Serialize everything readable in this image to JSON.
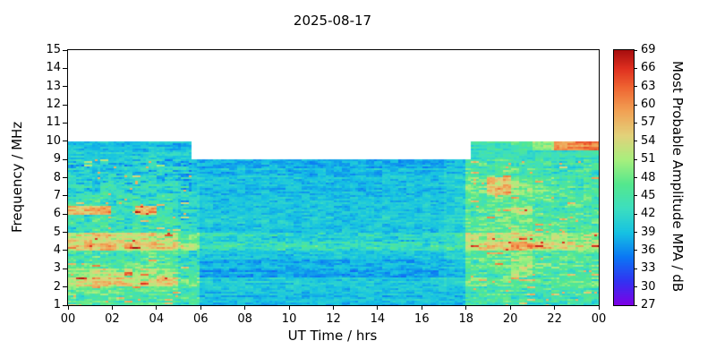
{
  "chart_data": {
    "type": "heatmap",
    "title": "2025-08-17",
    "xlabel": "UT Time / hrs",
    "ylabel": "Frequency / MHz",
    "colorbar_label": "Most Probable Amplitude MPA / dB",
    "x_range": [
      0,
      24
    ],
    "y_range": [
      1,
      15
    ],
    "colorbar_range": [
      27,
      69
    ],
    "x_tick_hours": [
      0,
      2,
      4,
      6,
      8,
      10,
      12,
      14,
      16,
      18,
      20,
      22,
      24
    ],
    "x_tick_labels": [
      "00",
      "02",
      "04",
      "06",
      "08",
      "10",
      "12",
      "14",
      "16",
      "18",
      "20",
      "22",
      "00"
    ],
    "y_ticks": [
      1,
      2,
      3,
      4,
      5,
      6,
      7,
      8,
      9,
      10,
      11,
      12,
      13,
      14,
      15
    ],
    "colorbar_ticks": [
      27,
      30,
      33,
      36,
      39,
      42,
      45,
      48,
      51,
      54,
      57,
      60,
      63,
      66,
      69
    ],
    "colormap_stops": [
      [
        27,
        "#8000e6"
      ],
      [
        31,
        "#3333f2"
      ],
      [
        35,
        "#0b78f5"
      ],
      [
        39,
        "#17c3e3"
      ],
      [
        43,
        "#3ddfc0"
      ],
      [
        47,
        "#55e88e"
      ],
      [
        51,
        "#a8f07e"
      ],
      [
        55,
        "#e3d27b"
      ],
      [
        59,
        "#f2a255"
      ],
      [
        63,
        "#ef6432"
      ],
      [
        66,
        "#e03020"
      ],
      [
        69,
        "#a80f0f"
      ]
    ],
    "coverage": {
      "full_top_mhz": 10,
      "midday_top_mhz": 9,
      "midday_start_hr": 5.6,
      "midday_end_hr": 18.2
    },
    "grid": {
      "freq_start": 1.0,
      "freq_step": 0.5,
      "hour_step": 1,
      "values": [
        [
          46,
          46,
          45,
          46,
          45,
          44,
          39,
          39,
          39,
          39,
          39,
          39,
          39,
          39,
          39,
          39,
          39,
          39,
          44,
          45,
          44,
          44,
          44,
          44
        ],
        [
          48,
          48,
          47,
          48,
          47,
          44,
          40,
          40,
          40,
          40,
          40,
          40,
          40,
          40,
          40,
          40,
          40,
          40,
          45,
          46,
          45,
          45,
          45,
          45
        ],
        [
          55,
          56,
          55,
          54,
          55,
          48,
          40,
          40,
          40,
          40,
          40,
          40,
          40,
          40,
          40,
          40,
          40,
          41,
          48,
          47,
          46,
          46,
          46,
          46
        ],
        [
          50,
          52,
          50,
          51,
          50,
          45,
          37,
          37,
          37,
          37,
          37,
          37,
          37,
          37,
          37,
          37,
          37,
          38,
          45,
          46,
          50,
          45,
          45,
          45
        ],
        [
          46,
          47,
          46,
          47,
          46,
          43,
          38,
          38,
          38,
          38,
          38,
          38,
          38,
          38,
          38,
          38,
          38,
          39,
          46,
          48,
          52,
          47,
          46,
          46
        ],
        [
          45,
          46,
          45,
          46,
          45,
          43,
          40,
          40,
          40,
          40,
          40,
          40,
          40,
          40,
          40,
          40,
          40,
          41,
          47,
          47,
          50,
          46,
          46,
          46
        ],
        [
          56,
          57,
          56,
          56,
          55,
          50,
          43,
          44,
          43,
          44,
          43,
          44,
          43,
          44,
          43,
          44,
          43,
          45,
          54,
          55,
          58,
          55,
          54,
          54
        ],
        [
          54,
          55,
          54,
          54,
          53,
          48,
          42,
          42,
          42,
          42,
          41,
          42,
          41,
          42,
          42,
          42,
          42,
          43,
          52,
          53,
          54,
          52,
          51,
          51
        ],
        [
          44,
          45,
          44,
          45,
          44,
          42,
          40,
          40,
          40,
          40,
          40,
          40,
          40,
          40,
          40,
          40,
          40,
          41,
          47,
          48,
          49,
          47,
          46,
          46
        ],
        [
          43,
          44,
          43,
          44,
          43,
          41,
          40,
          40,
          40,
          40,
          39,
          40,
          39,
          40,
          40,
          40,
          40,
          41,
          46,
          47,
          48,
          46,
          45,
          45
        ],
        [
          58,
          60,
          45,
          58,
          44,
          42,
          40,
          40,
          40,
          40,
          40,
          40,
          40,
          40,
          40,
          40,
          40,
          41,
          47,
          48,
          53,
          47,
          46,
          46
        ],
        [
          43,
          44,
          43,
          43,
          43,
          41,
          39,
          39,
          39,
          39,
          39,
          39,
          39,
          39,
          39,
          39,
          39,
          40,
          46,
          47,
          47,
          46,
          45,
          45
        ],
        [
          42,
          43,
          42,
          43,
          42,
          41,
          39,
          39,
          39,
          39,
          39,
          39,
          39,
          39,
          39,
          39,
          39,
          40,
          48,
          58,
          50,
          47,
          46,
          45
        ],
        [
          41,
          42,
          41,
          42,
          41,
          40,
          39,
          39,
          39,
          39,
          39,
          39,
          39,
          39,
          39,
          39,
          39,
          40,
          47,
          55,
          48,
          46,
          45,
          45
        ],
        [
          41,
          41,
          41,
          41,
          41,
          40,
          39,
          39,
          39,
          39,
          38,
          39,
          38,
          39,
          39,
          39,
          39,
          40,
          46,
          47,
          46,
          45,
          44,
          44
        ],
        [
          40,
          41,
          40,
          41,
          40,
          39,
          38,
          38,
          38,
          38,
          38,
          38,
          38,
          38,
          38,
          38,
          38,
          39,
          45,
          46,
          45,
          44,
          44,
          44
        ],
        [
          40,
          40,
          40,
          40,
          40,
          40,
          null,
          null,
          null,
          null,
          null,
          null,
          null,
          null,
          null,
          null,
          null,
          null,
          43,
          44,
          43,
          43,
          43,
          43
        ],
        [
          39,
          39,
          39,
          39,
          39,
          39,
          null,
          null,
          null,
          null,
          null,
          null,
          null,
          null,
          null,
          null,
          null,
          null,
          43,
          44,
          46,
          50,
          60,
          61
        ]
      ]
    }
  }
}
